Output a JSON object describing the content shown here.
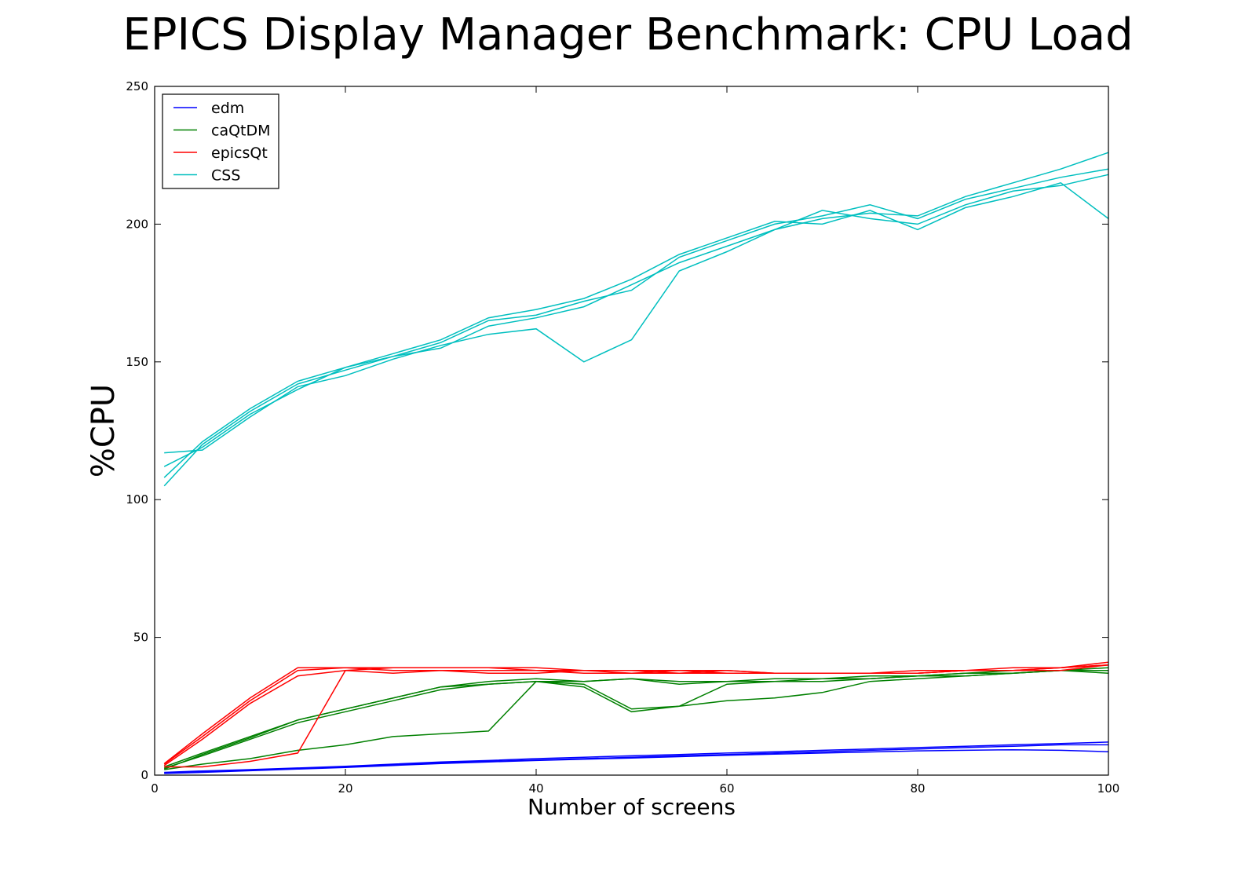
{
  "chart_data": {
    "type": "line",
    "title": "EPICS Display Manager Benchmark: CPU Load",
    "xlabel": "Number of screens",
    "ylabel": "%CPU",
    "xlim": [
      0,
      100
    ],
    "ylim": [
      0,
      250
    ],
    "xticks": [
      0,
      20,
      40,
      60,
      80,
      100
    ],
    "yticks": [
      0,
      50,
      100,
      150,
      200,
      250
    ],
    "grid": false,
    "legend_position": "top-left",
    "x": [
      1,
      5,
      10,
      15,
      20,
      25,
      30,
      35,
      40,
      45,
      50,
      55,
      60,
      65,
      70,
      75,
      80,
      85,
      90,
      95,
      100
    ],
    "series": [
      {
        "name": "edm",
        "color": "#0000ff",
        "runs": [
          [
            1,
            1.5,
            2,
            2.6,
            3.2,
            4,
            4.8,
            5.3,
            6,
            6.5,
            7,
            7.5,
            8,
            8.5,
            9,
            9.5,
            10,
            10.5,
            11,
            11.5,
            12
          ],
          [
            0.8,
            1.2,
            1.8,
            2.4,
            3,
            3.8,
            4.5,
            5,
            5.5,
            6,
            6.5,
            7,
            7.5,
            8,
            8.5,
            9,
            9.5,
            10,
            10.5,
            11,
            11
          ],
          [
            0.6,
            1,
            1.6,
            2.2,
            2.8,
            3.5,
            4.2,
            4.8,
            5.3,
            5.8,
            6.2,
            6.7,
            7.2,
            7.6,
            8,
            8.4,
            8.8,
            9,
            9.2,
            9,
            8.5
          ]
        ]
      },
      {
        "name": "caQtDM",
        "color": "#008000",
        "runs": [
          [
            3,
            8,
            14,
            20,
            24,
            28,
            32,
            34,
            35,
            34,
            35,
            34,
            34,
            34,
            35,
            35,
            36,
            37,
            37,
            38,
            39
          ],
          [
            2.5,
            7,
            13,
            19,
            23,
            27,
            31,
            33,
            34,
            33,
            24,
            25,
            33,
            34,
            34,
            35,
            36,
            36,
            37,
            38,
            38
          ],
          [
            2,
            4,
            6,
            9,
            11,
            14,
            15,
            16,
            34,
            32,
            23,
            25,
            27,
            28,
            30,
            34,
            35,
            36,
            37,
            38,
            38
          ],
          [
            2.2,
            7.5,
            13.5,
            20,
            24,
            28,
            32,
            33,
            34,
            34,
            35,
            33,
            34,
            35,
            35,
            36,
            36,
            37,
            38,
            38,
            37
          ]
        ]
      },
      {
        "name": "epicsQt",
        "color": "#ff0000",
        "runs": [
          [
            4,
            14,
            27,
            38,
            39,
            38,
            38,
            38,
            38,
            37,
            37,
            37,
            37,
            37,
            37,
            37,
            37,
            38,
            38,
            39,
            40
          ],
          [
            3.5,
            13,
            26,
            36,
            38,
            37,
            38,
            37,
            37,
            38,
            37,
            38,
            37,
            37,
            37,
            37,
            38,
            38,
            38,
            38,
            40
          ],
          [
            3,
            3,
            5,
            8,
            38,
            39,
            39,
            39,
            39,
            38,
            38,
            37,
            38,
            37,
            37,
            37,
            37,
            38,
            38,
            39,
            41
          ],
          [
            4.2,
            15,
            28,
            39,
            39,
            39,
            39,
            39,
            38,
            38,
            38,
            38,
            38,
            37,
            37,
            37,
            37,
            38,
            39,
            39,
            40
          ]
        ]
      },
      {
        "name": "CSS",
        "color": "#00bfbf",
        "runs": [
          [
            105,
            120,
            132,
            142,
            147,
            152,
            155,
            163,
            166,
            170,
            178,
            186,
            192,
            198,
            202,
            204,
            203,
            210,
            215,
            220,
            226
          ],
          [
            112,
            119,
            131,
            140,
            148,
            152,
            157,
            165,
            167,
            172,
            176,
            188,
            194,
            200,
            203,
            207,
            202,
            209,
            213,
            217,
            220
          ],
          [
            117,
            118,
            130,
            141,
            145,
            151,
            156,
            160,
            162,
            150,
            158,
            183,
            190,
            198,
            205,
            202,
            200,
            207,
            212,
            214,
            218
          ],
          [
            108,
            121,
            133,
            143,
            148,
            153,
            158,
            166,
            169,
            173,
            180,
            189,
            195,
            201,
            200,
            205,
            198,
            206,
            210,
            215,
            202
          ]
        ]
      }
    ]
  }
}
